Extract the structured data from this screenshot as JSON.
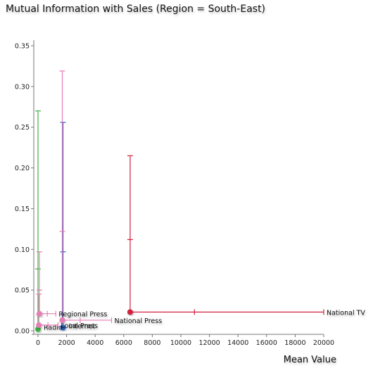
{
  "chart_data": {
    "type": "scatter",
    "title": "Mutual Information with Sales (Region = South-East)",
    "xlabel": "Mean Value",
    "ylabel": "",
    "xlim": [
      0,
      20000
    ],
    "ylim": [
      0,
      0.35
    ],
    "xticks": [
      0,
      2000,
      4000,
      6000,
      8000,
      10000,
      12000,
      14000,
      16000,
      18000,
      20000
    ],
    "yticks": [
      0.0,
      0.05,
      0.1,
      0.15,
      0.2,
      0.25,
      0.3,
      0.35
    ],
    "grid": false,
    "legend": "none",
    "series": [
      {
        "label": "National TV",
        "color": "#d0213f",
        "x": 6450,
        "y": 0.023,
        "x_err": [
          6450,
          10950,
          20000
        ],
        "y_err": [
          0.023,
          0.112,
          0.215
        ]
      },
      {
        "label": "Internet",
        "color": "#2a63c6",
        "x": 1750,
        "y": 0.004,
        "x_err": [
          1750,
          1750,
          1750
        ],
        "y_err": [
          0.004,
          0.097,
          0.256
        ]
      },
      {
        "label": "Radio",
        "color": "#3cb043",
        "x": 0,
        "y": 0.002,
        "x_err": [
          0,
          0,
          0
        ],
        "y_err": [
          0.002,
          0.076,
          0.27
        ]
      },
      {
        "label": "National Press",
        "color": "#e67db6",
        "x": 1700,
        "y": 0.013,
        "x_err": [
          1700,
          2950,
          5150
        ],
        "y_err": [
          0.013,
          0.122,
          0.319
        ]
      },
      {
        "label": "Regional Press",
        "color": "#e67db6",
        "x": 100,
        "y": 0.021,
        "x_err": [
          100,
          650,
          1250
        ],
        "y_err": [
          0.021,
          0.05,
          0.097
        ]
      },
      {
        "label": "Local Press",
        "color": "#e67db6",
        "x": 60,
        "y": 0.007,
        "x_err": [
          60,
          700,
          1400
        ],
        "y_err": [
          0.007,
          0.02,
          0.045
        ]
      }
    ]
  }
}
